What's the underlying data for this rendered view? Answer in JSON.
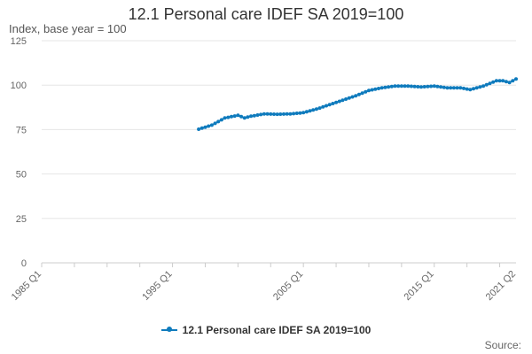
{
  "chart_data": {
    "type": "line",
    "title": "12.1 Personal care IDEF SA 2019=100",
    "ylabel": "Index, base year = 100",
    "xlabel": "",
    "ylim": [
      0,
      125
    ],
    "yticks": [
      0,
      25,
      50,
      75,
      100,
      125
    ],
    "xlim": [
      "1985 Q1",
      "2021 Q2"
    ],
    "xticks": [
      "1985 Q1",
      "1995 Q1",
      "2005 Q1",
      "2015 Q1",
      "2021 Q2"
    ],
    "grid": true,
    "legend_position": "bottom",
    "series": [
      {
        "name": "12.1 Personal care IDEF SA 2019=100",
        "color": "#0f7bbd",
        "x": [
          "1997 Q1",
          "1998 Q1",
          "1999 Q1",
          "2000 Q1",
          "2000 Q3",
          "2001 Q1",
          "2002 Q1",
          "2003 Q1",
          "2004 Q1",
          "2005 Q1",
          "2006 Q1",
          "2007 Q1",
          "2008 Q1",
          "2009 Q1",
          "2010 Q1",
          "2011 Q1",
          "2012 Q1",
          "2013 Q1",
          "2014 Q1",
          "2015 Q1",
          "2016 Q1",
          "2017 Q1",
          "2017 Q4",
          "2018 Q4",
          "2019 Q4",
          "2020 Q2",
          "2020 Q4",
          "2021 Q2"
        ],
        "values": [
          75.2,
          77.5,
          81.5,
          83.0,
          81.5,
          82.5,
          83.8,
          83.6,
          83.8,
          84.5,
          86.5,
          89.0,
          91.5,
          94.0,
          97.0,
          98.5,
          99.5,
          99.5,
          99.0,
          99.5,
          98.5,
          98.5,
          97.5,
          99.5,
          102.5,
          102.5,
          101.5,
          103.5
        ]
      }
    ]
  },
  "credits": "Source:"
}
